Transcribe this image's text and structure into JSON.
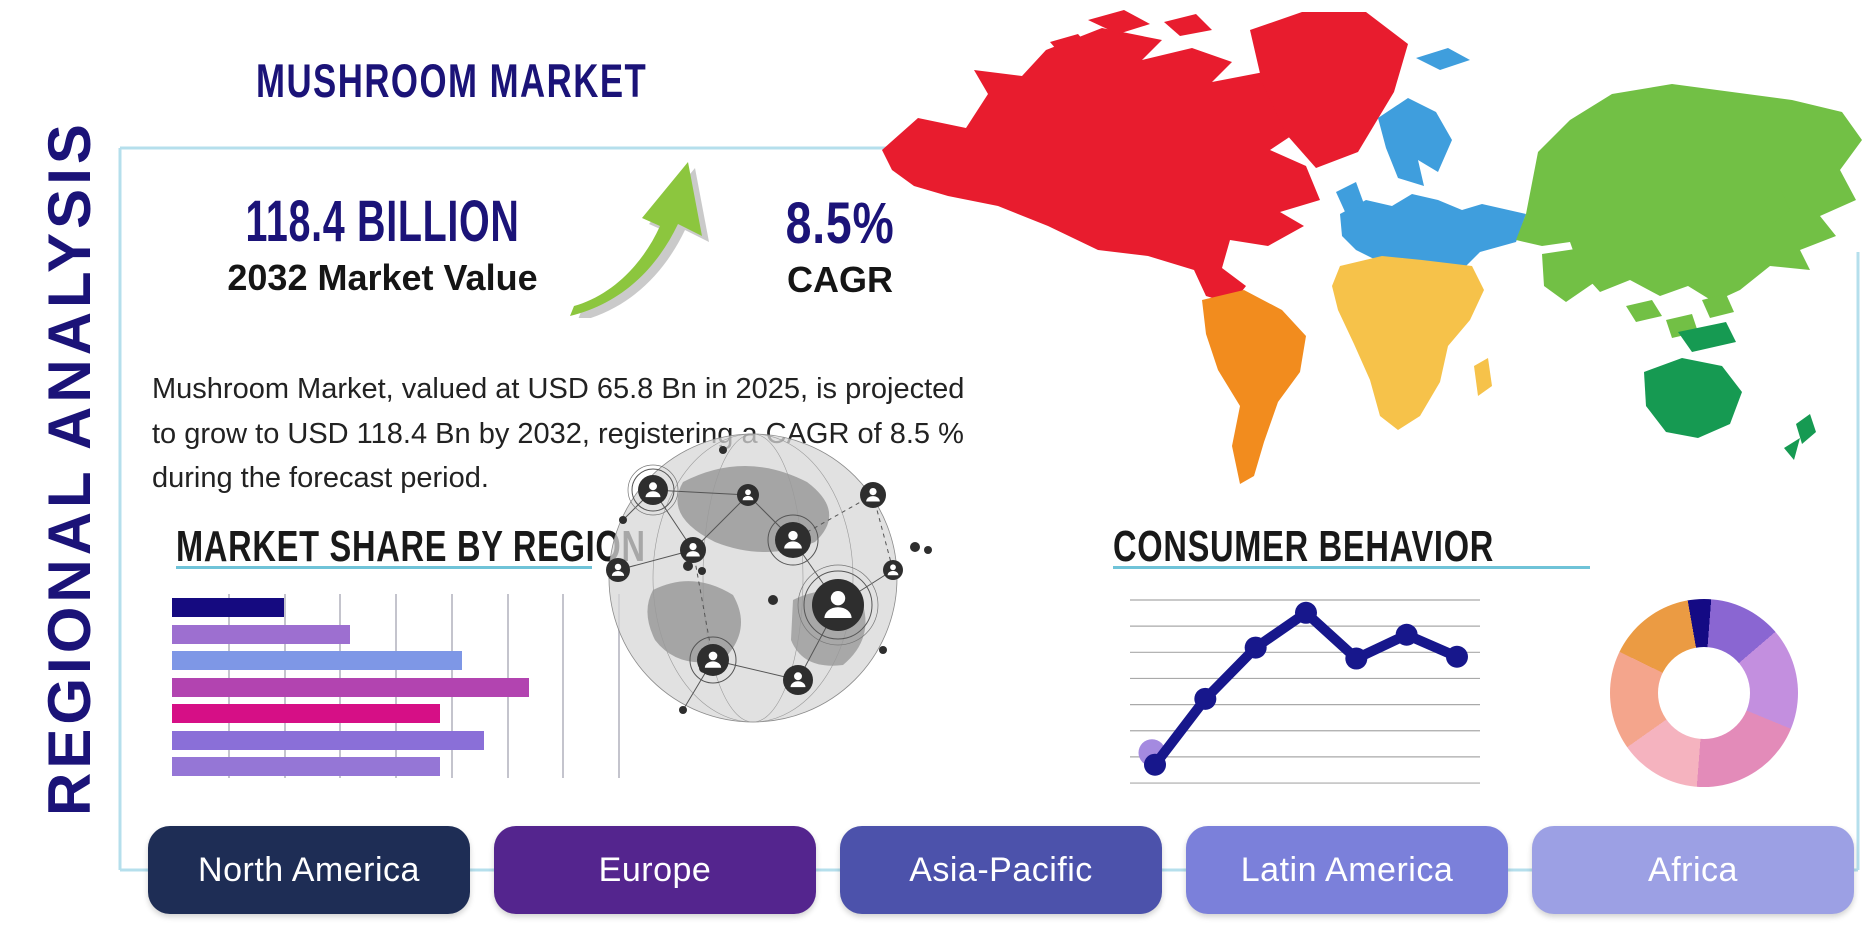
{
  "title": "MUSHROOM MARKET",
  "side_label": "REGIONAL ANALYSIS",
  "stats": {
    "value_2032": "118.4 BILLION",
    "value_2032_caption": "2032 Market Value",
    "cagr_value": "8.5%",
    "cagr_caption": "CAGR"
  },
  "description": "Mushroom Market, valued at USD 65.8 Bn in 2025, is projected to grow to USD 118.4 Bn by 2032, registering a CAGR of 8.5 % during the forecast period.",
  "sections": {
    "market_share_heading": "MARKET SHARE BY REGION",
    "consumer_behavior_heading": "CONSUMER BEHAVIOR"
  },
  "region_buttons": [
    {
      "label": "North America",
      "color": "#1e2d55"
    },
    {
      "label": "Europe",
      "color": "#54258e"
    },
    {
      "label": "Asia-Pacific",
      "color": "#4c52ab"
    },
    {
      "label": "Latin America",
      "color": "#7b80da"
    },
    {
      "label": "Africa",
      "color": "#9ca0e4"
    }
  ],
  "colors": {
    "navy_text": "#1b1378",
    "panel_border": "#b5dfec",
    "heading_underline": "#6fc3d8",
    "arrow_green": "#8cc63e",
    "arrow_shadow": "#9e9e9e"
  },
  "map": {
    "colors": {
      "north_america": "#e81c2e",
      "south_america": "#f28c1e",
      "europe": "#3f9edd",
      "africa": "#f6c24a",
      "asia": "#72c045",
      "oceania": "#169a52"
    }
  },
  "chart_data": [
    {
      "type": "bar",
      "orientation": "horizontal",
      "title": "MARKET SHARE BY REGION",
      "categories": [
        "",
        "",
        "",
        "",
        "",
        "",
        ""
      ],
      "values": [
        25,
        40,
        65,
        80,
        60,
        70,
        60
      ],
      "xlim": [
        0,
        100
      ],
      "grid": true,
      "gridline_step": 12.5,
      "bar_colors": [
        "#150a80",
        "#9d6fd0",
        "#7e97e6",
        "#b244b0",
        "#d60f86",
        "#8a6fd8",
        "#9576d6"
      ]
    },
    {
      "type": "line",
      "title": "CONSUMER BEHAVIOR",
      "x": [
        1,
        2,
        3,
        4,
        5,
        6,
        7
      ],
      "values": [
        10,
        46,
        74,
        93,
        68,
        81,
        69
      ],
      "ylim": [
        0,
        100
      ],
      "grid": true,
      "gridlines": 8,
      "line_color": "#17178c",
      "start_marker_color": "#a48ae0"
    },
    {
      "type": "pie",
      "subtype": "donut",
      "labels": [
        "",
        "",
        "",
        "",
        "",
        "",
        ""
      ],
      "values": [
        4,
        12.5,
        17.5,
        20,
        14,
        17,
        15
      ],
      "start_angle_deg": 350,
      "colors": [
        "#140a84",
        "#8a66d2",
        "#c38fdf",
        "#e38bb9",
        "#f5b3bf",
        "#f4a58c",
        "#eb9b43"
      ]
    }
  ]
}
